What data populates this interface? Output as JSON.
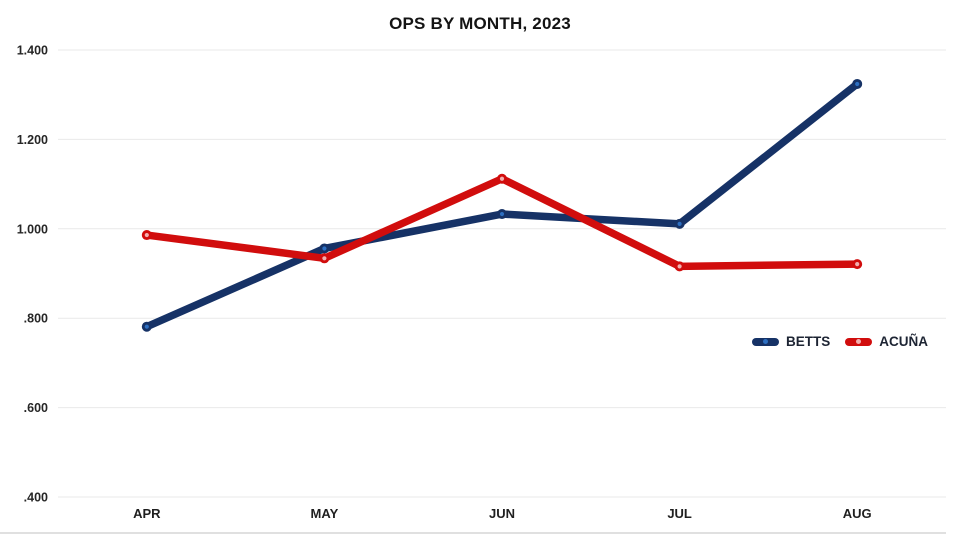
{
  "page": {
    "background": "#ffffff"
  },
  "chart_data": {
    "type": "line",
    "title": "OPS BY MONTH, 2023",
    "xlabel": "",
    "ylabel": "",
    "categories": [
      "APR",
      "MAY",
      "JUN",
      "JUL",
      "AUG"
    ],
    "series": [
      {
        "name": "BETTS",
        "color": "#163266",
        "marker_color": "#2d6fc1",
        "values": [
          0.781,
          0.956,
          1.033,
          1.011,
          1.324
        ]
      },
      {
        "name": "ACUÑA",
        "color": "#d10d0d",
        "marker_color": "#f2b0b0",
        "values": [
          0.986,
          0.934,
          1.112,
          0.916,
          0.921
        ]
      }
    ],
    "y_ticks": [
      {
        "label": "1.400",
        "value": 1.4
      },
      {
        "label": "1.200",
        "value": 1.2
      },
      {
        "label": "1.000",
        "value": 1.0
      },
      {
        "label": ".800",
        "value": 0.8
      },
      {
        "label": ".600",
        "value": 0.6
      },
      {
        "label": ".400",
        "value": 0.4
      }
    ],
    "ylim": [
      0.4,
      1.4
    ],
    "grid": true,
    "legend_position": "right-middle",
    "gridline_color": "#e9e9e9",
    "baseline_color": "#d6d6d6",
    "line_width": 7.5
  }
}
